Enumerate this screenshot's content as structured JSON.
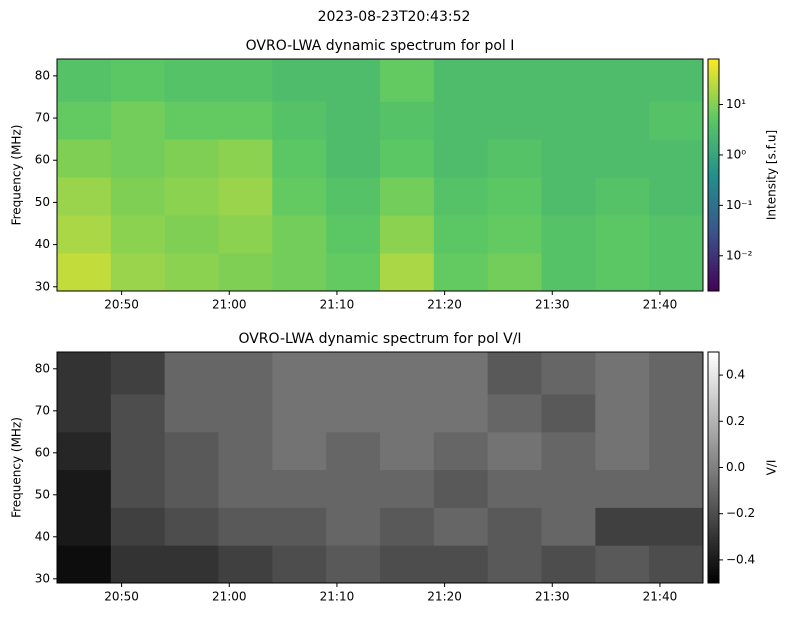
{
  "title": "2023-08-23T20:43:52",
  "chart_data": [
    {
      "type": "heatmap",
      "title": "OVRO-LWA dynamic spectrum for pol I",
      "ylabel": "Frequency (MHz)",
      "colorbar_label": "Intensity [s.f.u]",
      "colormap": "viridis",
      "color_log": true,
      "clim": [
        0.002,
        80
      ],
      "cticks": [
        {
          "value": 0.01,
          "label": "10⁻²"
        },
        {
          "value": 0.1,
          "label": "10⁻¹"
        },
        {
          "value": 1,
          "label": "10⁰"
        },
        {
          "value": 10,
          "label": "10¹"
        }
      ],
      "xlim": [
        "20:44",
        "21:44"
      ],
      "xticks": [
        "20:50",
        "21:00",
        "21:10",
        "21:20",
        "21:30",
        "21:40"
      ],
      "ylim": [
        29,
        84
      ],
      "yticks": [
        30,
        40,
        50,
        60,
        70,
        80
      ],
      "xbins": [
        "20:44",
        "20:49",
        "20:54",
        "20:59",
        "21:04",
        "21:09",
        "21:14",
        "21:19",
        "21:24",
        "21:29",
        "21:34",
        "21:39",
        "21:44"
      ],
      "ybins": [
        29,
        38,
        47,
        56,
        65,
        74,
        84
      ],
      "values": [
        [
          30,
          15,
          12,
          10,
          8,
          6,
          20,
          6,
          8,
          4,
          5,
          4
        ],
        [
          20,
          12,
          10,
          12,
          8,
          5,
          12,
          5,
          6,
          4,
          5,
          4
        ],
        [
          15,
          10,
          12,
          15,
          6,
          4,
          8,
          4,
          5,
          3,
          4,
          3
        ],
        [
          10,
          8,
          10,
          12,
          5,
          3,
          5,
          3,
          4,
          3,
          3,
          3
        ],
        [
          6,
          8,
          6,
          6,
          4,
          3,
          4,
          3,
          3,
          3,
          3,
          4
        ],
        [
          4,
          5,
          4,
          4,
          3,
          3,
          6,
          3,
          3,
          3,
          3,
          3
        ]
      ]
    },
    {
      "type": "heatmap",
      "title": "OVRO-LWA dynamic spectrum for pol V/I",
      "ylabel": "Frequency (MHz)",
      "colorbar_label": "V/I",
      "colormap": "gray",
      "color_log": false,
      "clim": [
        -0.5,
        0.5
      ],
      "cticks": [
        {
          "value": -0.4,
          "label": "−0.4"
        },
        {
          "value": -0.2,
          "label": "−0.2"
        },
        {
          "value": 0,
          "label": "0.0"
        },
        0.2,
        0.4
      ],
      "xlim": [
        "20:44",
        "21:44"
      ],
      "xticks": [
        "20:50",
        "21:00",
        "21:10",
        "21:20",
        "21:30",
        "21:40"
      ],
      "ylim": [
        29,
        84
      ],
      "yticks": [
        30,
        40,
        50,
        60,
        70,
        80
      ],
      "xbins": [
        "20:44",
        "20:49",
        "20:54",
        "20:59",
        "21:04",
        "21:09",
        "21:14",
        "21:19",
        "21:24",
        "21:29",
        "21:34",
        "21:39",
        "21:44"
      ],
      "ybins": [
        29,
        38,
        47,
        56,
        65,
        74,
        84
      ],
      "values": [
        [
          -0.45,
          -0.3,
          -0.3,
          -0.25,
          -0.2,
          -0.15,
          -0.2,
          -0.2,
          -0.15,
          -0.2,
          -0.15,
          -0.2
        ],
        [
          -0.4,
          -0.25,
          -0.2,
          -0.15,
          -0.15,
          -0.1,
          -0.15,
          -0.1,
          -0.15,
          -0.1,
          -0.25,
          -0.25
        ],
        [
          -0.4,
          -0.2,
          -0.15,
          -0.1,
          -0.1,
          -0.1,
          -0.1,
          -0.15,
          -0.1,
          -0.1,
          -0.1,
          -0.1
        ],
        [
          -0.35,
          -0.2,
          -0.15,
          -0.1,
          -0.05,
          -0.1,
          -0.05,
          -0.1,
          -0.05,
          -0.1,
          -0.05,
          -0.1
        ],
        [
          -0.3,
          -0.2,
          -0.1,
          -0.1,
          -0.05,
          -0.05,
          -0.05,
          -0.05,
          -0.1,
          -0.15,
          -0.05,
          -0.1
        ],
        [
          -0.3,
          -0.25,
          -0.1,
          -0.1,
          -0.05,
          -0.05,
          -0.05,
          -0.05,
          -0.15,
          -0.1,
          -0.05,
          -0.1
        ]
      ]
    }
  ]
}
